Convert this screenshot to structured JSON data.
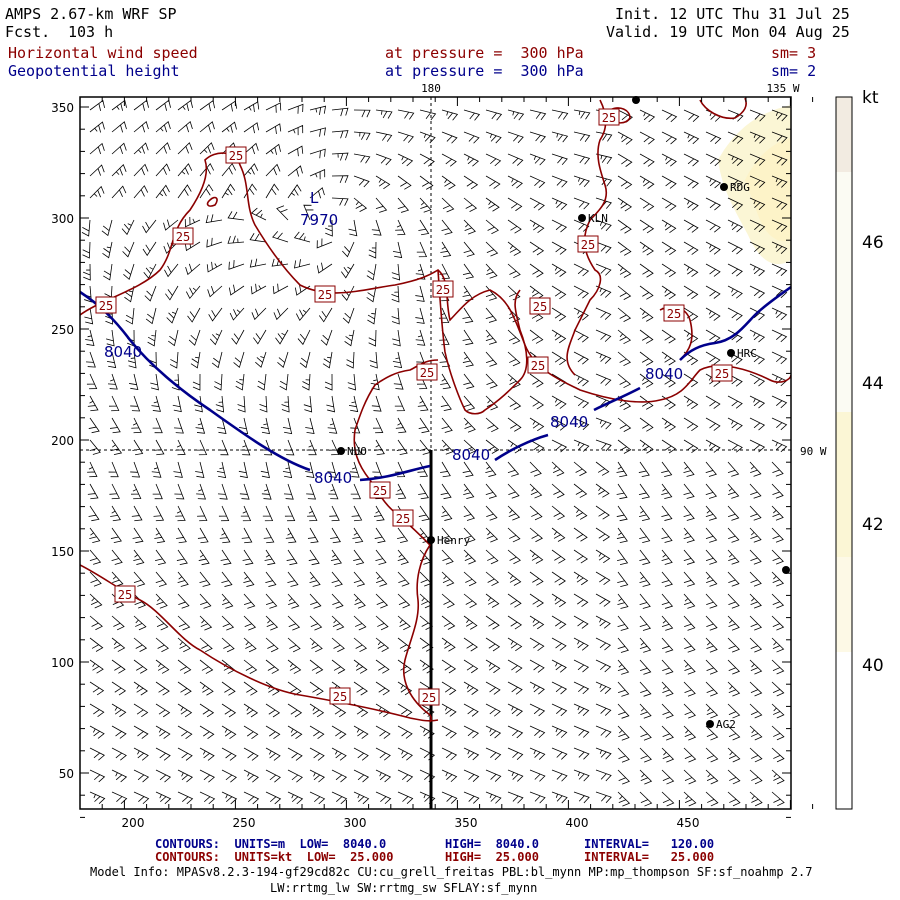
{
  "header": {
    "model": "AMPS 2.67-km WRF SP",
    "fcst_label": "Fcst.",
    "fcst_value": "103 h",
    "init": "Init. 12 UTC Thu 31 Jul 25",
    "valid": "Valid. 19 UTC Mon 04 Aug 25",
    "field1": "Horizontal wind speed",
    "field1_level": "at pressure =  300 hPa",
    "field1_sm": "sm= 3",
    "field2": "Geopotential height",
    "field2_level": "at pressure =  300 hPa",
    "field2_sm": "sm= 2"
  },
  "map": {
    "x_ticks": [
      "200",
      "250",
      "300",
      "350",
      "400",
      "450"
    ],
    "y_ticks": [
      "350",
      "300",
      "250",
      "200",
      "150",
      "100",
      "50"
    ],
    "meridian_labels": {
      "m180": "180",
      "m135": "135 W",
      "m90": "90 W"
    },
    "stations": [
      {
        "id": "RDG",
        "label": "RDG"
      },
      {
        "id": "KLN",
        "label": "KLN"
      },
      {
        "id": "HRC",
        "label": "HRC"
      },
      {
        "id": "NUO",
        "label": "NUO"
      },
      {
        "id": "HNY",
        "label": "Henry"
      },
      {
        "id": "AG2",
        "label": "AG2"
      }
    ],
    "contour_labels_height": [
      "8040",
      "8040",
      "8040",
      "8040",
      "8040"
    ],
    "low_center": {
      "symbol": "L",
      "value": "7970"
    },
    "speed_label": "25",
    "colors": {
      "height": "#00008b",
      "speed": "#8b0000",
      "barb": "#000000",
      "colorbar_fill": "#fbf6d5"
    }
  },
  "colorbar": {
    "unit": "kt",
    "labels": [
      "46",
      "44",
      "42",
      "40"
    ],
    "bands": [
      {
        "level": "above 46",
        "color": "#f2ebe1"
      },
      {
        "level": "44-46",
        "color": "#fbfbf3"
      },
      {
        "level": "42-44",
        "color": "#fbf6d5"
      },
      {
        "level": "40-42",
        "color": "#fdf9e6"
      },
      {
        "level": "below 40",
        "color": "#ffffff"
      }
    ]
  },
  "footer": {
    "line1_a": "CONTOURS:  UNITS=m  LOW=  8040.0",
    "line1_b": "HIGH=  8040.0",
    "line1_c": "INTERVAL=   120.00",
    "line2_a": "CONTOURS:  UNITS=kt  LOW=  25.000",
    "line2_b": "HIGH=  25.000",
    "line2_c": "INTERVAL=   25.000",
    "info1": "Model Info: MPASv8.2.3-194-gf29cd82c CU:cu_grell_freitas PBL:bl_mynn MP:mp_thompson SF:sf_noahmp 2.7",
    "info2": "LW:rrtmg_lw SW:rrtmg_sw SFLAY:sf_mynn"
  }
}
